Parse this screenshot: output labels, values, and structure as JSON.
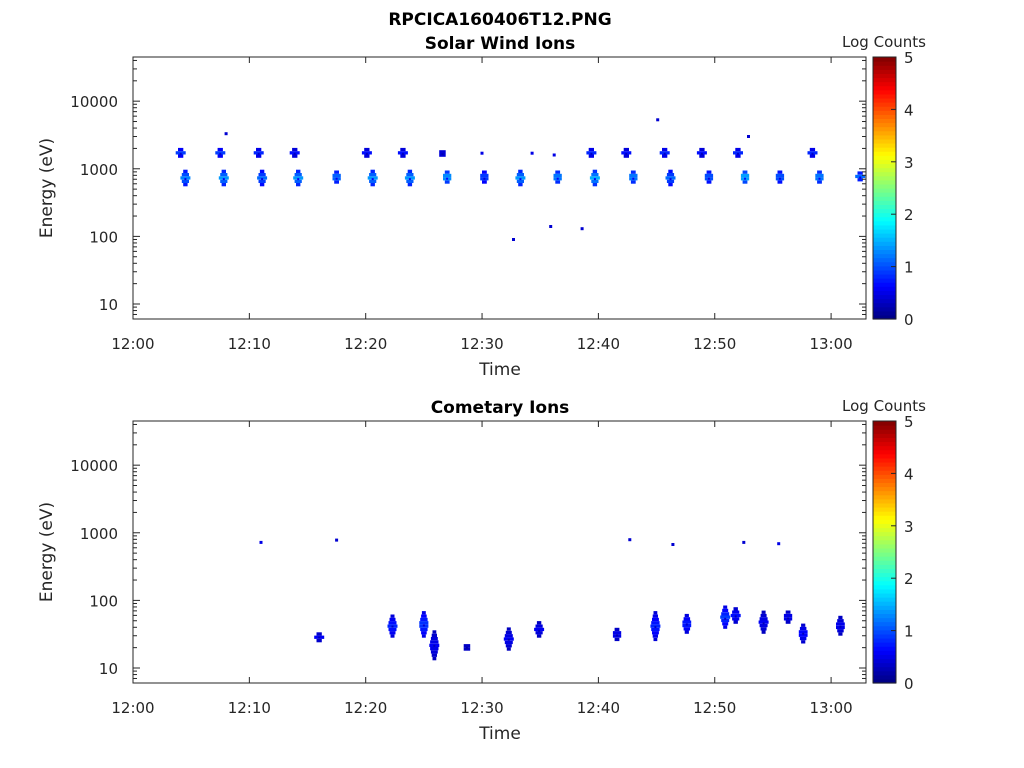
{
  "figure_title": "RPCICA160406T12.PNG",
  "colorbar": {
    "label": "Log Counts",
    "ticks": [
      "0",
      "1",
      "2",
      "3",
      "4",
      "5"
    ],
    "range": [
      0,
      5
    ],
    "colormap": "jet"
  },
  "chart_data": [
    {
      "type": "heatmap",
      "title": "Solar Wind Ions",
      "xlabel": "Time",
      "ylabel": "Energy (eV)",
      "xlim": [
        "12:00",
        "13:03"
      ],
      "ylim": [
        6,
        45000
      ],
      "y_scale": "log",
      "xticks": [
        "12:00",
        "12:10",
        "12:20",
        "12:30",
        "12:40",
        "12:50",
        "13:00"
      ],
      "yticks": [
        "10",
        "100",
        "1000",
        "10000"
      ],
      "grid": false,
      "clusters": [
        {
          "t": "12:04.5",
          "e_min": 550,
          "e_max": 900,
          "level": 1.1
        },
        {
          "t": "12:04.1",
          "e_min": 1450,
          "e_max": 1900,
          "level": 0.8
        },
        {
          "t": "12:07.8",
          "e_min": 550,
          "e_max": 900,
          "level": 1.2
        },
        {
          "t": "12:07.5",
          "e_min": 1450,
          "e_max": 1900,
          "level": 0.8
        },
        {
          "t": "12:11.1",
          "e_min": 550,
          "e_max": 900,
          "level": 1.0
        },
        {
          "t": "12:10.8",
          "e_min": 1450,
          "e_max": 1900,
          "level": 0.7
        },
        {
          "t": "12:14.2",
          "e_min": 550,
          "e_max": 900,
          "level": 1.2
        },
        {
          "t": "12:13.9",
          "e_min": 1450,
          "e_max": 1900,
          "level": 0.6
        },
        {
          "t": "12:17.5",
          "e_min": 600,
          "e_max": 850,
          "level": 1.1
        },
        {
          "t": "12:20.6",
          "e_min": 550,
          "e_max": 900,
          "level": 1.2
        },
        {
          "t": "12:20.1",
          "e_min": 1450,
          "e_max": 1900,
          "level": 0.6
        },
        {
          "t": "12:23.8",
          "e_min": 550,
          "e_max": 900,
          "level": 1.2
        },
        {
          "t": "12:23.2",
          "e_min": 1450,
          "e_max": 1900,
          "level": 0.6
        },
        {
          "t": "12:27.0",
          "e_min": 600,
          "e_max": 850,
          "level": 1.3
        },
        {
          "t": "12:26.6",
          "e_min": 1500,
          "e_max": 1800,
          "level": 0.5
        },
        {
          "t": "12:30.2",
          "e_min": 600,
          "e_max": 850,
          "level": 0.9
        },
        {
          "t": "12:33.3",
          "e_min": 550,
          "e_max": 900,
          "level": 1.2
        },
        {
          "t": "12:36.5",
          "e_min": 600,
          "e_max": 850,
          "level": 1.2
        },
        {
          "t": "12:39.7",
          "e_min": 550,
          "e_max": 900,
          "level": 1.3
        },
        {
          "t": "12:39.4",
          "e_min": 1450,
          "e_max": 1900,
          "level": 0.7
        },
        {
          "t": "12:43.0",
          "e_min": 600,
          "e_max": 850,
          "level": 1.2
        },
        {
          "t": "12:42.4",
          "e_min": 1450,
          "e_max": 1900,
          "level": 0.6
        },
        {
          "t": "12:46.2",
          "e_min": 550,
          "e_max": 900,
          "level": 1.0
        },
        {
          "t": "12:45.7",
          "e_min": 1450,
          "e_max": 1900,
          "level": 0.7
        },
        {
          "t": "12:49.5",
          "e_min": 600,
          "e_max": 850,
          "level": 1.0
        },
        {
          "t": "12:48.9",
          "e_min": 1450,
          "e_max": 1900,
          "level": 0.6
        },
        {
          "t": "12:52.6",
          "e_min": 600,
          "e_max": 850,
          "level": 1.4
        },
        {
          "t": "12:52.0",
          "e_min": 1450,
          "e_max": 1900,
          "level": 0.7
        },
        {
          "t": "12:55.6",
          "e_min": 600,
          "e_max": 850,
          "level": 1.0
        },
        {
          "t": "12:59.0",
          "e_min": 600,
          "e_max": 850,
          "level": 1.2
        },
        {
          "t": "12:58.4",
          "e_min": 1450,
          "e_max": 1900,
          "level": 0.7
        },
        {
          "t": "13:02.5",
          "e_min": 650,
          "e_max": 850,
          "level": 1.0
        }
      ],
      "points": [
        {
          "t": "12:08.0",
          "e": 3300,
          "level": 0.4
        },
        {
          "t": "12:32.7",
          "e": 90,
          "level": 0.4
        },
        {
          "t": "12:35.9",
          "e": 140,
          "level": 0.4
        },
        {
          "t": "12:38.6",
          "e": 130,
          "level": 0.4
        },
        {
          "t": "12:45.1",
          "e": 5300,
          "level": 0.4
        },
        {
          "t": "12:52.9",
          "e": 3000,
          "level": 0.4
        },
        {
          "t": "12:30.0",
          "e": 1700,
          "level": 0.5
        },
        {
          "t": "12:34.3",
          "e": 1700,
          "level": 0.5
        },
        {
          "t": "12:36.2",
          "e": 1600,
          "level": 0.5
        }
      ]
    },
    {
      "type": "heatmap",
      "title": "Cometary Ions",
      "xlabel": "Time",
      "ylabel": "Energy (eV)",
      "xlim": [
        "12:00",
        "13:03"
      ],
      "ylim": [
        6,
        45000
      ],
      "y_scale": "log",
      "xticks": [
        "12:00",
        "12:10",
        "12:20",
        "12:30",
        "12:40",
        "12:50",
        "13:00"
      ],
      "yticks": [
        "10",
        "100",
        "1000",
        "10000"
      ],
      "grid": false,
      "clusters": [
        {
          "t": "12:16.0",
          "e_min": 24,
          "e_max": 33,
          "level": 0.5
        },
        {
          "t": "12:22.3",
          "e_min": 28,
          "e_max": 60,
          "level": 0.7
        },
        {
          "t": "12:25.0",
          "e_min": 28,
          "e_max": 65,
          "level": 0.8
        },
        {
          "t": "12:25.9",
          "e_min": 13,
          "e_max": 35,
          "level": 0.5
        },
        {
          "t": "12:28.7",
          "e_min": 18,
          "e_max": 22,
          "level": 0.4
        },
        {
          "t": "12:32.3",
          "e_min": 18,
          "e_max": 38,
          "level": 0.5
        },
        {
          "t": "12:34.9",
          "e_min": 28,
          "e_max": 45,
          "level": 0.5
        },
        {
          "t": "12:41.6",
          "e_min": 25,
          "e_max": 37,
          "level": 0.5
        },
        {
          "t": "12:44.9",
          "e_min": 25,
          "e_max": 65,
          "level": 0.7
        },
        {
          "t": "12:47.6",
          "e_min": 32,
          "e_max": 60,
          "level": 0.7
        },
        {
          "t": "12:50.9",
          "e_min": 38,
          "e_max": 75,
          "level": 0.8
        },
        {
          "t": "12:51.8",
          "e_min": 45,
          "e_max": 75,
          "level": 0.6
        },
        {
          "t": "12:54.2",
          "e_min": 32,
          "e_max": 65,
          "level": 0.5
        },
        {
          "t": "12:56.3",
          "e_min": 45,
          "e_max": 65,
          "level": 0.5
        },
        {
          "t": "12:57.6",
          "e_min": 23,
          "e_max": 45,
          "level": 0.6
        },
        {
          "t": "13:00.8",
          "e_min": 30,
          "e_max": 55,
          "level": 0.5
        }
      ],
      "points": [
        {
          "t": "12:11.0",
          "e": 720,
          "level": 0.5
        },
        {
          "t": "12:17.5",
          "e": 780,
          "level": 0.4
        },
        {
          "t": "12:42.7",
          "e": 790,
          "level": 0.4
        },
        {
          "t": "12:46.4",
          "e": 670,
          "level": 0.4
        },
        {
          "t": "12:52.5",
          "e": 720,
          "level": 0.4
        },
        {
          "t": "12:55.5",
          "e": 690,
          "level": 0.5
        }
      ]
    }
  ]
}
